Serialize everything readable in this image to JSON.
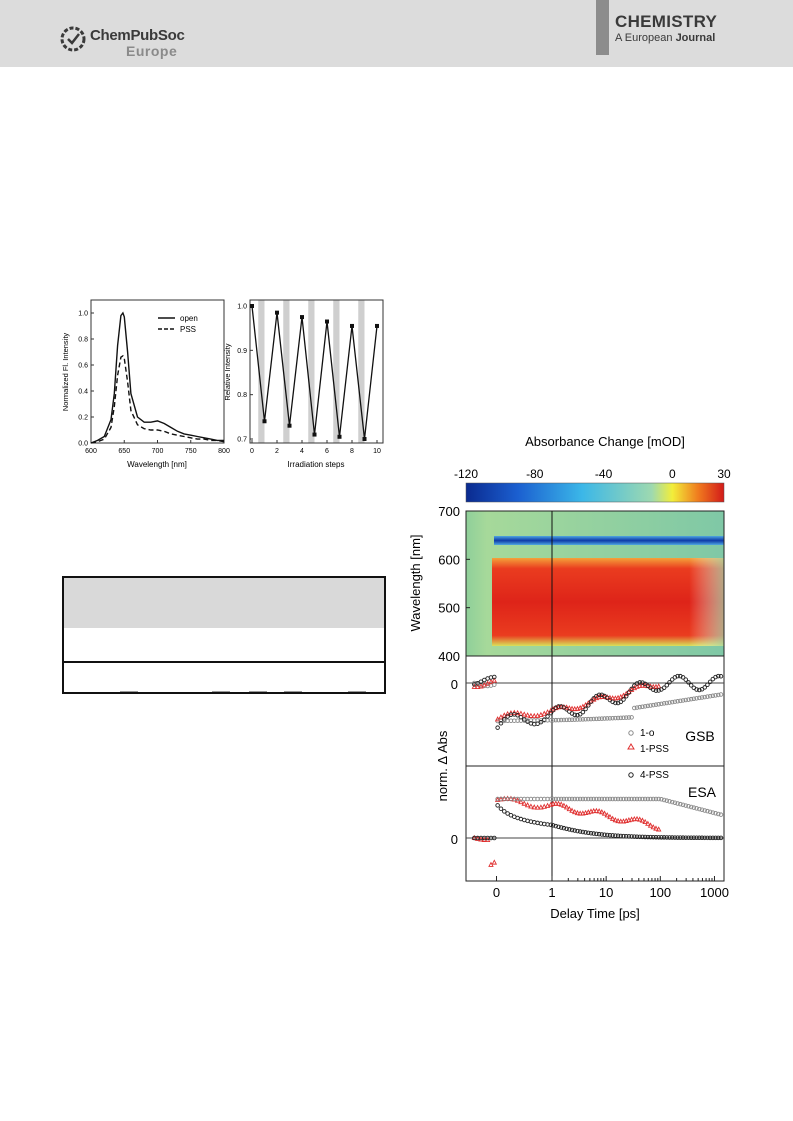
{
  "header": {
    "publisher_line1": "ChemPubSoc",
    "publisher_line2": "Europe",
    "journal_name": "CHEMISTRY",
    "journal_sub_prefix": "A European",
    "journal_sub_bold": "Journal"
  },
  "colors": {
    "header_bg": "#dcdcdc",
    "header_bar": "#8c8c8c",
    "pss_marker": "#e03030"
  },
  "chart_data": [
    {
      "type": "line",
      "xlabel": "Wavelength [nm]",
      "ylabel": "Normalized Fl. Intensity",
      "xlim": [
        600,
        800
      ],
      "ylim": [
        0,
        1.1
      ],
      "xticks": [
        "600",
        "650",
        "700",
        "750",
        "800"
      ],
      "yticks": [
        "0.0",
        "0.2",
        "0.4",
        "0.6",
        "0.8",
        "1.0"
      ],
      "legend_position": "top-right",
      "x": [
        600,
        610,
        620,
        630,
        635,
        640,
        645,
        648,
        650,
        655,
        660,
        670,
        680,
        690,
        700,
        710,
        720,
        730,
        740,
        750,
        760,
        770,
        780,
        790,
        800
      ],
      "series": [
        {
          "name": "open",
          "style": "solid",
          "values": [
            0.0,
            0.02,
            0.05,
            0.18,
            0.38,
            0.75,
            0.98,
            1.0,
            0.97,
            0.7,
            0.38,
            0.2,
            0.16,
            0.16,
            0.17,
            0.15,
            0.12,
            0.09,
            0.07,
            0.06,
            0.05,
            0.04,
            0.03,
            0.02,
            0.02
          ]
        },
        {
          "name": "PSS",
          "style": "dashed",
          "values": [
            0.0,
            0.01,
            0.03,
            0.12,
            0.28,
            0.52,
            0.66,
            0.67,
            0.65,
            0.47,
            0.25,
            0.14,
            0.11,
            0.1,
            0.1,
            0.09,
            0.07,
            0.06,
            0.05,
            0.04,
            0.03,
            0.03,
            0.02,
            0.02,
            0.01
          ]
        }
      ]
    },
    {
      "type": "line",
      "xlabel": "Irradiation steps",
      "ylabel": "Relative Intensity",
      "xlim": [
        0,
        10
      ],
      "ylim": [
        0.7,
        1.0
      ],
      "xticks": [
        "0",
        "2",
        "4",
        "6",
        "8",
        "10"
      ],
      "yticks": [
        "0.7",
        "0.8",
        "0.9",
        "1.0"
      ],
      "shaded_intervals": [
        [
          0.5,
          1
        ],
        [
          2.5,
          3
        ],
        [
          4.5,
          5
        ],
        [
          6.5,
          7
        ],
        [
          8.5,
          9
        ]
      ],
      "x": [
        0,
        1,
        2,
        3,
        4,
        5,
        6,
        7,
        8,
        9,
        10
      ],
      "values": [
        1.0,
        0.74,
        0.985,
        0.73,
        0.975,
        0.71,
        0.965,
        0.705,
        0.955,
        0.7,
        0.955
      ]
    },
    {
      "type": "heatmap",
      "colorbar_title": "Absorbance Change [mOD]",
      "colorbar_ticks": [
        "-120",
        "-80",
        "-40",
        "0",
        "30"
      ],
      "colorbar_range": [
        -120,
        30
      ],
      "ylabel": "Wavelength [nm]",
      "ylim": [
        400,
        700
      ],
      "yticks": [
        "400",
        "500",
        "600",
        "700"
      ],
      "bands": [
        {
          "feature": "ground state bleach",
          "wavelength_nm": 648,
          "value_mOD": -110
        },
        {
          "feature": "excited state absorption",
          "wavelength_range_nm": [
            430,
            600
          ],
          "value_mOD": 30
        }
      ]
    },
    {
      "type": "scatter",
      "panel_label": "GSB",
      "ylabel": "norm. Δ Abs",
      "yticks": [
        "0"
      ],
      "xlabel": "Delay Time [ps]",
      "xticks": [
        "0",
        "1",
        "10",
        "100",
        "1000"
      ],
      "axis_break": "linear below 1 ps, logarithmic above",
      "series": [
        {
          "name": "1-o",
          "marker": "circle",
          "color": "#8a8a8a"
        },
        {
          "name": "1-PSS",
          "marker": "triangle",
          "color": "#e03030"
        }
      ]
    },
    {
      "type": "scatter",
      "panel_label": "ESA",
      "yticks": [
        "0"
      ],
      "xlabel": "Delay Time [ps]",
      "xticks": [
        "0",
        "1",
        "10",
        "100",
        "1000"
      ],
      "series": [
        {
          "name": "4-PSS",
          "marker": "circle",
          "color": "#222222"
        }
      ]
    }
  ]
}
